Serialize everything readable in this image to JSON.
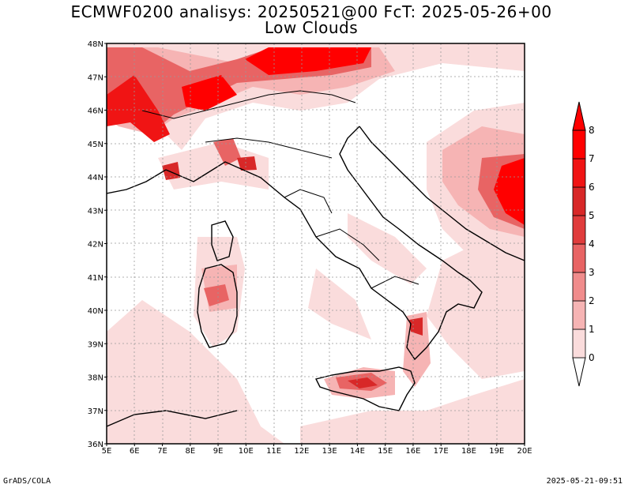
{
  "header": {
    "title_line1": "ECMWF0200 analisys: 20250521@00 FcT: 2025-05-26+00",
    "title_line2": "Low Clouds"
  },
  "map": {
    "lon_range": [
      5,
      20
    ],
    "lat_range": [
      36,
      48
    ],
    "lon_ticks": [
      "5E",
      "6E",
      "7E",
      "8E",
      "9E",
      "10E",
      "11E",
      "12E",
      "13E",
      "14E",
      "15E",
      "16E",
      "17E",
      "18E",
      "19E",
      "20E"
    ],
    "lat_ticks": [
      "36N",
      "37N",
      "38N",
      "39N",
      "40N",
      "41N",
      "42N",
      "43N",
      "44N",
      "45N",
      "46N",
      "47N",
      "48N"
    ],
    "grid": "dotted"
  },
  "colorbar": {
    "levels": [
      "0",
      "1",
      "2",
      "3",
      "4",
      "5",
      "6",
      "7",
      "8"
    ],
    "colors": [
      "#ffffff",
      "#fadcdc",
      "#f6b4b4",
      "#f08c8c",
      "#e86464",
      "#e03c3c",
      "#d82828",
      "#f01414",
      "#ff0000"
    ]
  },
  "footer": {
    "credit": "GrADS/COLA",
    "timestamp": "2025-05-21-09:51"
  }
}
